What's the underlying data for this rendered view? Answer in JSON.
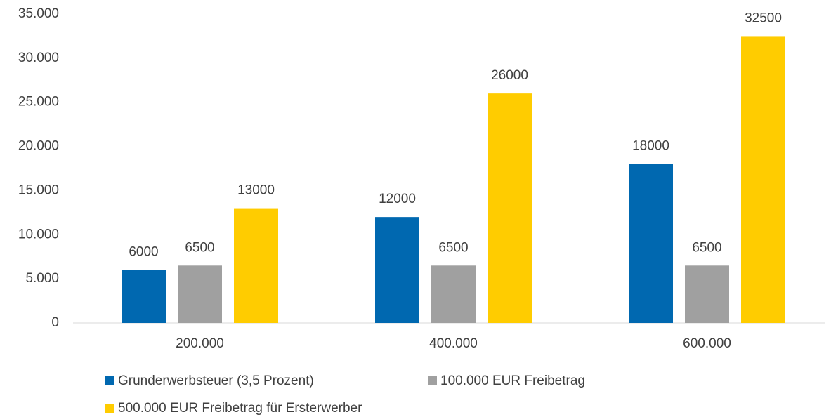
{
  "chart_data": {
    "type": "bar",
    "categories": [
      "200.000",
      "400.000",
      "600.000"
    ],
    "series": [
      {
        "name": "Grunderwerbsteuer (3,5 Prozent)",
        "color": "#0068b0",
        "values": [
          6000,
          12000,
          18000
        ]
      },
      {
        "name": "100.000 EUR Freibetrag",
        "color": "#a0a0a0",
        "values": [
          6500,
          6500,
          6500
        ]
      },
      {
        "name": "500.000 EUR Freibetrag für Ersterwerber",
        "color": "#ffcc00",
        "values": [
          13000,
          26000,
          32500
        ]
      }
    ],
    "ylim": [
      0,
      35000
    ],
    "yticks": [
      0,
      {
        "value": 5000,
        "label": "5.000"
      },
      {
        "value": 10000,
        "label": "10.000"
      },
      {
        "value": 15000,
        "label": "15.000"
      },
      {
        "value": 20000,
        "label": "20.000"
      },
      {
        "value": 25000,
        "label": "25.000"
      },
      {
        "value": 30000,
        "label": "30.000"
      },
      {
        "value": 35000,
        "label": "35.000"
      }
    ],
    "grid": false,
    "legend": "bottom"
  }
}
